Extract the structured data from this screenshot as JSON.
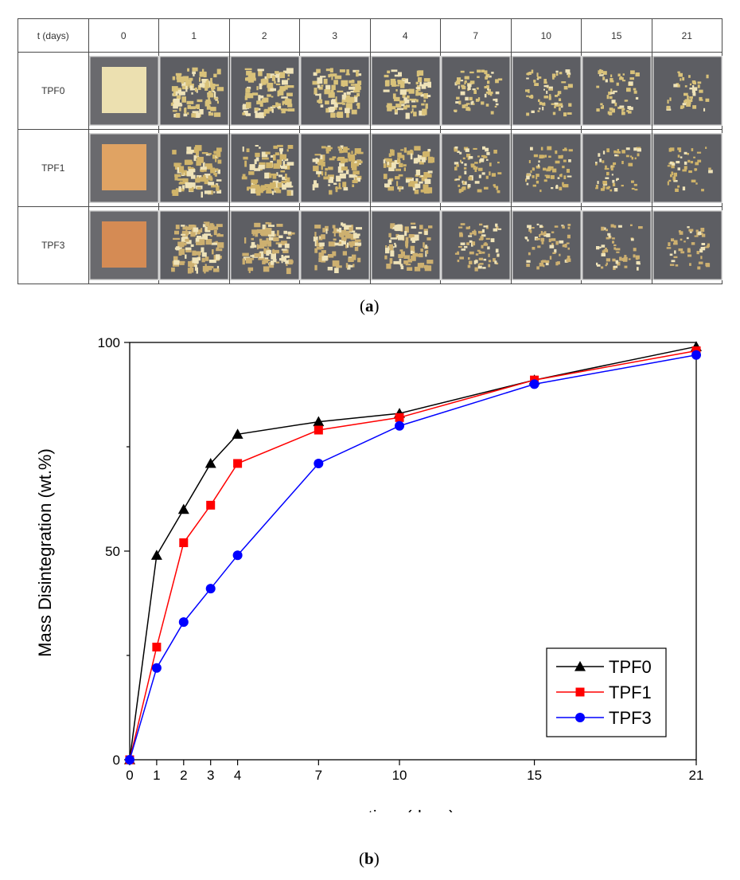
{
  "table": {
    "header_label": "t (days)",
    "days": [
      "0",
      "1",
      "2",
      "3",
      "4",
      "7",
      "10",
      "15",
      "21"
    ],
    "rows": [
      {
        "label": "TPF0",
        "tint": "#d9c27a",
        "start_color": "#ece0b0"
      },
      {
        "label": "TPF1",
        "tint": "#d0b46a",
        "start_color": "#e0a363"
      },
      {
        "label": "TPF3",
        "tint": "#cdb070",
        "start_color": "#d58b54"
      }
    ],
    "caption_open": "(",
    "caption_letter": "a",
    "caption_close": ")"
  },
  "chart_caption": {
    "open": "(",
    "letter": "b",
    "close": ")"
  },
  "colors": {
    "tile_bg": "#5d5e63",
    "frame": "#d6d6d6"
  },
  "chart_data": {
    "type": "line",
    "title": "",
    "xlabel": "time (days)",
    "ylabel": "Mass Disintegration (wt.%)",
    "x": [
      0,
      1,
      2,
      3,
      4,
      7,
      10,
      15,
      21
    ],
    "x_ticks": [
      0,
      1,
      2,
      3,
      4,
      7,
      10,
      15,
      21
    ],
    "y_ticks": [
      0,
      50,
      100
    ],
    "y_minor_ticks": [
      25,
      75
    ],
    "xlim": [
      0,
      21
    ],
    "ylim": [
      0,
      100
    ],
    "legend_position": "bottom-right",
    "series": [
      {
        "name": "TPF0",
        "color": "#000000",
        "marker": "triangle",
        "values": [
          0,
          49,
          60,
          71,
          78,
          81,
          83,
          91,
          99
        ]
      },
      {
        "name": "TPF1",
        "color": "#ff0000",
        "marker": "square",
        "values": [
          0,
          27,
          52,
          61,
          71,
          79,
          82,
          91,
          98
        ]
      },
      {
        "name": "TPF3",
        "color": "#0000ff",
        "marker": "circle",
        "values": [
          0,
          22,
          33,
          41,
          49,
          71,
          80,
          90,
          97
        ]
      }
    ]
  }
}
